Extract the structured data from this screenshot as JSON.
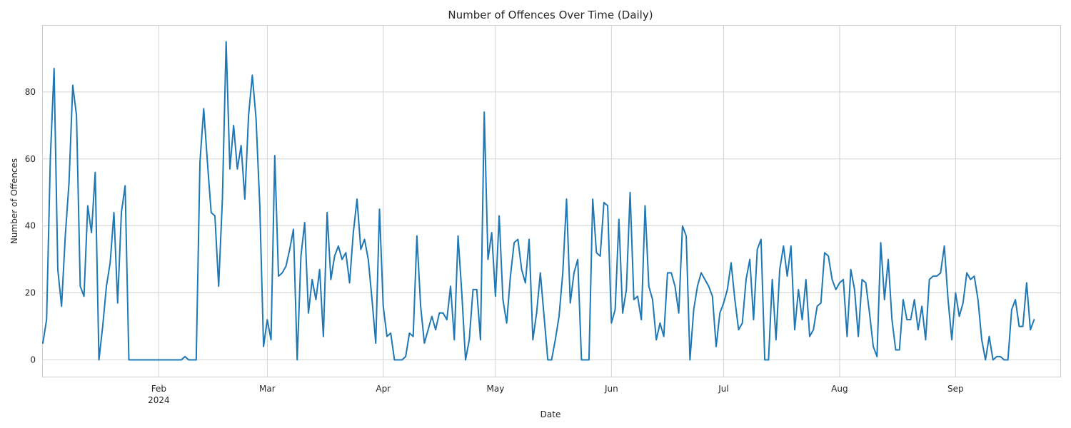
{
  "chart_data": {
    "type": "line",
    "title": "Number of Offences Over Time (Daily)",
    "xlabel": "Date",
    "ylabel": "Number of Offences",
    "grid": true,
    "legend": "none",
    "xlim": [
      "2024-01-01",
      "2024-09-29"
    ],
    "ylim": [
      -5,
      100
    ],
    "y_ticks": [
      0,
      20,
      40,
      60,
      80
    ],
    "x_ticks": [
      {
        "date": "2024-02-01",
        "label": "Feb",
        "sublabel": "2024"
      },
      {
        "date": "2024-03-01",
        "label": "Mar",
        "sublabel": ""
      },
      {
        "date": "2024-04-01",
        "label": "Apr",
        "sublabel": ""
      },
      {
        "date": "2024-05-01",
        "label": "May",
        "sublabel": ""
      },
      {
        "date": "2024-06-01",
        "label": "Jun",
        "sublabel": ""
      },
      {
        "date": "2024-07-01",
        "label": "Jul",
        "sublabel": ""
      },
      {
        "date": "2024-08-01",
        "label": "Aug",
        "sublabel": ""
      },
      {
        "date": "2024-09-01",
        "label": "Sep",
        "sublabel": ""
      }
    ],
    "series": [
      {
        "color": "#1f77b4",
        "start_date": "2024-01-01",
        "values": [
          5,
          12,
          60,
          87,
          27,
          16,
          37,
          53,
          82,
          73,
          22,
          19,
          46,
          38,
          56,
          0,
          10,
          22,
          29,
          44,
          17,
          44,
          52,
          0,
          0,
          0,
          0,
          0,
          0,
          0,
          0,
          0,
          0,
          0,
          0,
          0,
          0,
          0,
          1,
          0,
          0,
          0,
          59,
          75,
          59,
          44,
          43,
          22,
          48,
          95,
          57,
          70,
          57,
          64,
          48,
          73,
          85,
          72,
          46,
          4,
          12,
          6,
          61,
          25,
          26,
          28,
          33,
          39,
          0,
          31,
          41,
          14,
          24,
          18,
          27,
          7,
          44,
          24,
          31,
          34,
          30,
          32,
          23,
          38,
          48,
          33,
          36,
          30,
          18,
          5,
          45,
          16,
          7,
          8,
          0,
          0,
          0,
          1,
          8,
          7,
          37,
          16,
          5,
          9,
          13,
          9,
          14,
          14,
          12,
          22,
          6,
          37,
          20,
          0,
          6,
          21,
          21,
          6,
          74,
          30,
          38,
          19,
          43,
          18,
          11,
          25,
          35,
          36,
          27,
          23,
          36,
          6,
          14,
          26,
          13,
          0,
          0,
          6,
          13,
          26,
          48,
          17,
          26,
          30,
          0,
          0,
          0,
          48,
          32,
          31,
          47,
          46,
          11,
          15,
          42,
          14,
          21,
          50,
          18,
          19,
          12,
          46,
          22,
          18,
          6,
          11,
          7,
          26,
          26,
          22,
          14,
          40,
          37,
          0,
          15,
          22,
          26,
          24,
          22,
          19,
          4,
          14,
          17,
          21,
          29,
          18,
          9,
          11,
          24,
          30,
          12,
          33,
          36,
          0,
          0,
          24,
          6,
          27,
          34,
          25,
          34,
          9,
          21,
          12,
          24,
          7,
          9,
          16,
          17,
          32,
          31,
          24,
          21,
          23,
          24,
          7,
          27,
          21,
          7,
          24,
          23,
          14,
          4,
          1,
          35,
          18,
          30,
          12,
          3,
          3,
          18,
          12,
          12,
          18,
          9,
          16,
          6,
          24,
          25,
          25,
          26,
          34,
          18,
          6,
          20,
          13,
          17,
          26,
          24,
          25,
          18,
          6,
          0,
          7,
          0,
          1,
          1,
          0,
          0,
          15,
          18,
          10,
          10,
          23,
          9,
          12
        ]
      }
    ]
  }
}
